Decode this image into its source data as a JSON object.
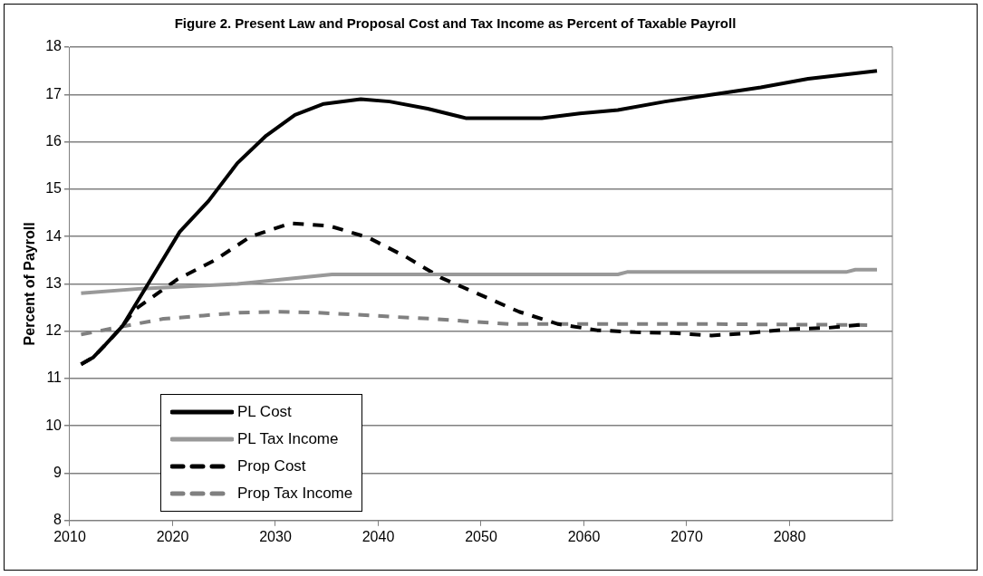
{
  "chart_data": {
    "type": "line",
    "title": "Figure 2. Present Law and Proposal Cost and Tax Income as Percent of Taxable Payroll",
    "ylabel": "Percent of Payroll",
    "xlim": [
      2010,
      2090
    ],
    "xticks": [
      2010,
      2020,
      2030,
      2040,
      2050,
      2060,
      2070,
      2080
    ],
    "ylim": [
      8,
      18
    ],
    "yticks": [
      8,
      9,
      10,
      11,
      12,
      13,
      14,
      15,
      16,
      17,
      18
    ],
    "grid": "y",
    "legend": "bottom left",
    "marker": "none",
    "series": [
      {
        "name": "PL Cost",
        "color": "#000000",
        "line_style": "solid",
        "x": [
          2011.1,
          2012.3,
          2013.4,
          2015.1,
          2017.9,
          2020.7,
          2023.5,
          2026.3,
          2029.1,
          2031.9,
          2034.7,
          2038.3,
          2041.1,
          2044.8,
          2048.5,
          2052.2,
          2055.9,
          2059.6,
          2063.3,
          2067.9,
          2072.6,
          2077.2,
          2081.8,
          2088.5
        ],
        "values": [
          11.3,
          11.45,
          11.7,
          12.1,
          13.1,
          14.1,
          14.75,
          15.55,
          16.13,
          16.57,
          16.8,
          16.9,
          16.85,
          16.7,
          16.5,
          16.5,
          16.5,
          16.6,
          16.67,
          16.85,
          17.0,
          17.15,
          17.33,
          17.5
        ]
      },
      {
        "name": "PL Tax Income",
        "color": "#999999",
        "line_style": "solid",
        "x": [
          2011.1,
          2017,
          2026.3,
          2030.9,
          2035.5,
          2044.8,
          2063.3,
          2064.2,
          2085.5,
          2086.4,
          2088.5
        ],
        "values": [
          12.8,
          12.9,
          13.0,
          13.1,
          13.2,
          13.2,
          13.2,
          13.25,
          13.25,
          13.3,
          13.3
        ]
      },
      {
        "name": "Prop Cost",
        "color": "#000000",
        "line_style": "dashed",
        "x": [
          2011.1,
          2012.3,
          2013.4,
          2015.1,
          2016.3,
          2020.5,
          2024.1,
          2027.6,
          2031.5,
          2035.3,
          2039.0,
          2042.7,
          2046.1,
          2050.0,
          2053.7,
          2057.5,
          2061.3,
          2065.0,
          2068.7,
          2072.4,
          2076.1,
          2079.8,
          2083.7,
          2087.6
        ],
        "values": [
          11.3,
          11.45,
          11.7,
          12.1,
          12.45,
          13.1,
          13.5,
          14.0,
          14.28,
          14.22,
          13.98,
          13.57,
          13.13,
          12.76,
          12.41,
          12.15,
          12.02,
          11.98,
          11.96,
          11.91,
          11.96,
          12.04,
          12.07,
          12.15
        ]
      },
      {
        "name": "Prop Tax Income",
        "color": "#808080",
        "line_style": "dashed",
        "x": [
          2011.1,
          2015.1,
          2019.1,
          2023.0,
          2026.5,
          2030.4,
          2034.1,
          2038.0,
          2041.7,
          2045.4,
          2049.2,
          2052.9,
          2056.6,
          2063.3,
          2072.6,
          2087.6
        ],
        "values": [
          11.93,
          12.1,
          12.26,
          12.33,
          12.39,
          12.41,
          12.39,
          12.35,
          12.3,
          12.26,
          12.2,
          12.15,
          12.15,
          12.15,
          12.15,
          12.13
        ]
      }
    ]
  }
}
